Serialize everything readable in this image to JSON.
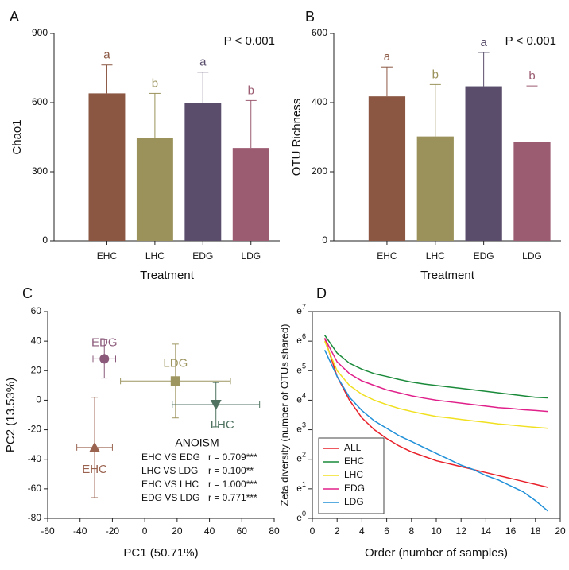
{
  "chart_data": [
    {
      "type": "bar",
      "panel": "A",
      "ylabel": "Chao1",
      "xlabel": "Treatment",
      "annotation": "P < 0.001",
      "categories": [
        "EHC",
        "LHC",
        "EDG",
        "LDG"
      ],
      "values": [
        640,
        447,
        600,
        403
      ],
      "errors": [
        123,
        193,
        132,
        206
      ],
      "letters": [
        "a",
        "b",
        "a",
        "b"
      ],
      "colors": [
        "#8b5743",
        "#9a925a",
        "#594d6b",
        "#9b5b70"
      ],
      "ylim": [
        0,
        900
      ],
      "yticks": [
        0,
        300,
        600,
        900
      ]
    },
    {
      "type": "bar",
      "panel": "B",
      "ylabel": "OTU Richness",
      "xlabel": "Treatment",
      "annotation": "P < 0.001",
      "categories": [
        "EHC",
        "LHC",
        "EDG",
        "LDG"
      ],
      "values": [
        418,
        302,
        447,
        287
      ],
      "errors": [
        85,
        150,
        98,
        161
      ],
      "letters": [
        "a",
        "b",
        "a",
        "b"
      ],
      "colors": [
        "#8b5743",
        "#9a925a",
        "#594d6b",
        "#9b5b70"
      ],
      "ylim": [
        0,
        600
      ],
      "yticks": [
        0,
        200,
        400,
        600
      ]
    },
    {
      "type": "scatter",
      "panel": "C",
      "xlabel": "PC1 (50.71%)",
      "ylabel": "PC2 (13.53%)",
      "series": [
        {
          "name": "EDG",
          "color": "#8b5a7a",
          "marker": "circle",
          "x": -25,
          "y": 28,
          "xerr": 7,
          "yerr": 13
        },
        {
          "name": "LDG",
          "color": "#9e9660",
          "marker": "square",
          "x": 19,
          "y": 13,
          "xerr": 34,
          "yerr": 25
        },
        {
          "name": "LHC",
          "color": "#4f7360",
          "marker": "triangle-down",
          "x": 44,
          "y": -3,
          "xerr": 27,
          "yerr": 15
        },
        {
          "name": "EHC",
          "color": "#9a6350",
          "marker": "triangle-up",
          "x": -31,
          "y": -32,
          "xerr": 11,
          "yerr": 34
        }
      ],
      "annotation": {
        "title": "ANOISM",
        "rows": [
          [
            "EHC VS EDG",
            "r = 0.709***"
          ],
          [
            "LHC VS LDG",
            "r = 0.100**"
          ],
          [
            "EHC VS LHC",
            "r = 1.000***"
          ],
          [
            "EDG VS LDG",
            "r = 0.771***"
          ]
        ]
      },
      "xlim": [
        -60,
        80
      ],
      "xticks": [
        -60,
        -40,
        -20,
        0,
        20,
        40,
        60,
        80
      ],
      "ylim": [
        -80,
        60
      ],
      "yticks": [
        -80,
        -60,
        -40,
        -20,
        0,
        20,
        40,
        60
      ]
    },
    {
      "type": "line",
      "panel": "D",
      "xlabel": "Order (number of samples)",
      "ylabel": "Zeta diversity (number of OTUs shared)",
      "x": [
        1,
        2,
        3,
        4,
        5,
        6,
        7,
        8,
        9,
        10,
        11,
        12,
        13,
        14,
        15,
        16,
        17,
        18,
        19
      ],
      "series": [
        {
          "name": "ALL",
          "color": "#e8202a",
          "values": [
            446,
            122,
            54.6,
            30.0,
            20.1,
            14.9,
            11.6,
            9.49,
            8.17,
            7.03,
            6.36,
            5.75,
            5.21,
            4.71,
            4.26,
            3.86,
            3.49,
            3.16,
            2.86
          ]
        },
        {
          "name": "EHC",
          "color": "#1a8a3a",
          "values": [
            493,
            270,
            191,
            156,
            134,
            122,
            110,
            101,
            94.6,
            90.0,
            85.6,
            81.5,
            77.5,
            73.7,
            70.1,
            66.7,
            63.4,
            60.3,
            59.1
          ]
        },
        {
          "name": "LHC",
          "color": "#f0e020",
          "values": [
            403,
            148,
            90.0,
            66.7,
            54.6,
            47.0,
            41.3,
            37.3,
            34.1,
            31.5,
            30.0,
            28.5,
            27.1,
            25.8,
            24.5,
            23.6,
            22.6,
            21.8,
            21.1
          ]
        },
        {
          "name": "EDG",
          "color": "#e0208a",
          "values": [
            446,
            200,
            134,
            105,
            90.0,
            77.5,
            70.1,
            63.4,
            58.6,
            54.6,
            51.9,
            49.4,
            47.0,
            44.7,
            42.5,
            41.3,
            39.6,
            38.5,
            37.3
          ]
        },
        {
          "name": "LDG",
          "color": "#2090d8",
          "values": [
            299,
            122,
            60.3,
            38.5,
            27.1,
            21.1,
            16.4,
            13.5,
            11.0,
            9.03,
            7.39,
            6.05,
            5.21,
            4.26,
            3.67,
            3.0,
            2.46,
            1.82,
            1.28
          ]
        }
      ],
      "ylog": true,
      "legend": "lower left",
      "xlim": [
        0,
        20
      ],
      "xticks": [
        0,
        2,
        4,
        6,
        8,
        10,
        12,
        14,
        16,
        18,
        20
      ],
      "ylim": [
        1,
        1096.6
      ],
      "yticks": [
        {
          "value": 1,
          "label": "e0"
        },
        {
          "value": 2.718,
          "label": "e1"
        },
        {
          "value": 7.389,
          "label": "e2"
        },
        {
          "value": 20.09,
          "label": "e3"
        },
        {
          "value": 54.6,
          "label": "e4"
        },
        {
          "value": 148.4,
          "label": "e5"
        },
        {
          "value": 403.4,
          "label": "e6"
        },
        {
          "value": 1096.6,
          "label": "e7"
        }
      ]
    }
  ]
}
